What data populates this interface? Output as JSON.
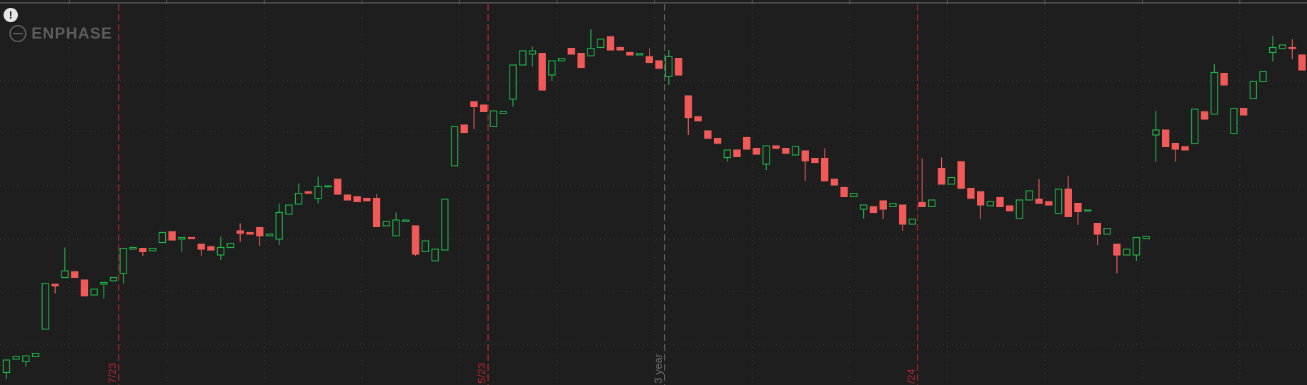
{
  "brand": "ENPHASE",
  "alert_icon": "!",
  "chart_data": {
    "type": "candlestick",
    "categories": [
      null,
      null,
      null,
      null,
      null,
      null,
      null,
      null,
      null,
      null,
      null,
      null,
      null,
      null,
      null,
      null,
      null,
      null,
      null,
      null,
      null,
      null,
      null,
      null,
      null,
      null,
      null,
      null,
      null,
      null,
      null,
      null,
      null,
      null,
      null,
      null,
      null,
      null,
      null,
      null,
      null,
      null,
      null,
      null,
      null,
      null,
      null,
      null,
      null,
      null,
      null,
      null,
      null,
      null,
      null,
      null,
      null,
      null,
      null,
      null,
      null,
      null,
      null,
      null,
      null,
      null,
      null,
      null,
      null,
      null,
      null,
      null,
      null,
      null,
      null,
      null,
      null,
      null,
      null,
      null,
      null,
      null,
      null,
      null,
      null,
      null,
      null,
      null,
      null,
      null,
      null,
      null,
      null,
      null,
      null,
      null,
      null,
      null,
      null,
      null,
      null,
      null,
      null,
      null,
      null,
      null,
      null,
      null,
      null,
      null,
      null,
      null,
      null,
      null,
      null,
      null,
      null,
      null,
      null,
      null,
      null,
      null,
      null,
      null,
      null,
      null,
      null,
      null,
      null,
      null,
      null,
      null,
      null,
      null
    ],
    "open": [
      13,
      29,
      26,
      32,
      65,
      119,
      127,
      134,
      124,
      106,
      119,
      123,
      132,
      161,
      162,
      159,
      169,
      182,
      173,
      175,
      167,
      164,
      154,
      163,
      183,
      181,
      187,
      177,
      173,
      203,
      215,
      230,
      222,
      236,
      245,
      226,
      224,
      222,
      222,
      189,
      177,
      194,
      189,
      158,
      147,
      160,
      261,
      310,
      338,
      334,
      308,
      324,
      341,
      382,
      395,
      396,
      370,
      387,
      402,
      396,
      393,
      403,
      416,
      403,
      397,
      394,
      392,
      387,
      368,
      390,
      345,
      320,
      303,
      294,
      271,
      280,
      295,
      282,
      263,
      285,
      282,
      274,
      279,
      270,
      270,
      245,
      235,
      224,
      209,
      212,
      219,
      212,
      214,
      191,
      217,
      212,
      258,
      239,
      266,
      234,
      230,
      213,
      223,
      213,
      198,
      220,
      221,
      218,
      204,
      233,
      216,
      207,
      192,
      179,
      167,
      154,
      154,
      174,
      298,
      304,
      288,
      284,
      288,
      326,
      323,
      372,
      300,
      330,
      342,
      362,
      397,
      402,
      403,
      394
    ],
    "high": [
      28,
      32,
      33,
      36,
      120,
      119,
      163,
      134,
      124,
      113,
      121,
      127,
      162,
      163,
      162,
      162,
      181,
      182,
      175,
      175,
      167,
      164,
      176,
      168,
      192,
      181,
      187,
      179,
      216,
      214,
      240,
      230,
      248,
      237,
      245,
      226,
      224,
      222,
      227,
      194,
      205,
      196,
      189,
      171,
      161,
      221,
      308,
      310,
      338,
      334,
      327,
      326,
      382,
      399,
      404,
      396,
      387,
      390,
      402,
      396,
      425,
      413,
      416,
      403,
      397,
      396,
      402,
      387,
      400,
      390,
      345,
      320,
      303,
      294,
      280,
      280,
      295,
      282,
      285,
      285,
      282,
      284,
      279,
      270,
      282,
      245,
      235,
      228,
      214,
      212,
      219,
      216,
      214,
      197,
      270,
      220,
      271,
      247,
      266,
      234,
      230,
      218,
      223,
      213,
      220,
      231,
      245,
      218,
      233,
      249,
      216,
      208,
      192,
      186,
      167,
      161,
      175,
      176,
      327,
      304,
      288,
      284,
      329,
      326,
      383,
      372,
      330,
      330,
      362,
      374,
      417,
      406,
      413,
      394
    ],
    "low": [
      5,
      29,
      20,
      32,
      65,
      108,
      127,
      127,
      105,
      106,
      102,
      123,
      120,
      161,
      153,
      159,
      169,
      172,
      158,
      174,
      153,
      160,
      148,
      163,
      170,
      179,
      165,
      177,
      166,
      203,
      215,
      228,
      216,
      236,
      227,
      220,
      218,
      219,
      188,
      189,
      177,
      194,
      153,
      158,
      147,
      160,
      261,
      301,
      305,
      326,
      308,
      324,
      332,
      382,
      380,
      352,
      363,
      387,
      395,
      379,
      393,
      403,
      400,
      400,
      394,
      394,
      385,
      378,
      358,
      370,
      298,
      315,
      294,
      288,
      266,
      272,
      281,
      275,
      256,
      282,
      276,
      274,
      243,
      265,
      243,
      238,
      224,
      224,
      198,
      205,
      197,
      212,
      183,
      191,
      212,
      212,
      239,
      239,
      234,
      222,
      197,
      213,
      212,
      207,
      198,
      220,
      216,
      214,
      204,
      200,
      190,
      207,
      166,
      179,
      132,
      154,
      147,
      174,
      266,
      284,
      266,
      280,
      288,
      317,
      323,
      358,
      300,
      322,
      342,
      362,
      386,
      402,
      389,
      376
    ],
    "close": [
      28,
      32,
      33,
      36,
      120,
      117,
      135,
      127,
      105,
      113,
      121,
      127,
      162,
      163,
      158,
      162,
      181,
      172,
      175,
      174,
      161,
      160,
      163,
      168,
      180,
      179,
      177,
      179,
      205,
      214,
      228,
      228,
      236,
      237,
      227,
      220,
      218,
      219,
      188,
      194,
      196,
      196,
      155,
      171,
      161,
      221,
      308,
      301,
      332,
      326,
      327,
      326,
      382,
      399,
      399,
      352,
      387,
      390,
      395,
      379,
      402,
      413,
      400,
      400,
      394,
      396,
      385,
      378,
      392,
      370,
      319,
      315,
      294,
      288,
      280,
      272,
      281,
      275,
      285,
      282,
      276,
      284,
      267,
      265,
      243,
      238,
      224,
      228,
      214,
      205,
      209,
      216,
      191,
      197,
      212,
      220,
      239,
      247,
      234,
      222,
      214,
      218,
      212,
      207,
      220,
      231,
      216,
      214,
      233,
      200,
      206,
      208,
      179,
      186,
      154,
      161,
      175,
      176,
      304,
      284,
      281,
      280,
      329,
      317,
      373,
      358,
      330,
      322,
      362,
      374,
      403,
      406,
      402,
      376
    ],
    "up_color": "#1fb44a",
    "down_color": "#f25a5a",
    "ylim": [
      -2,
      460
    ],
    "grid": true,
    "annotations": [
      {
        "label": "7/23",
        "color": "#b3262b"
      },
      {
        "label": "5/23",
        "color": "#b3262b"
      },
      {
        "label": "3 year",
        "color": "#6e6e6e"
      },
      {
        "label": "/24",
        "color": "#b3262b"
      }
    ]
  }
}
